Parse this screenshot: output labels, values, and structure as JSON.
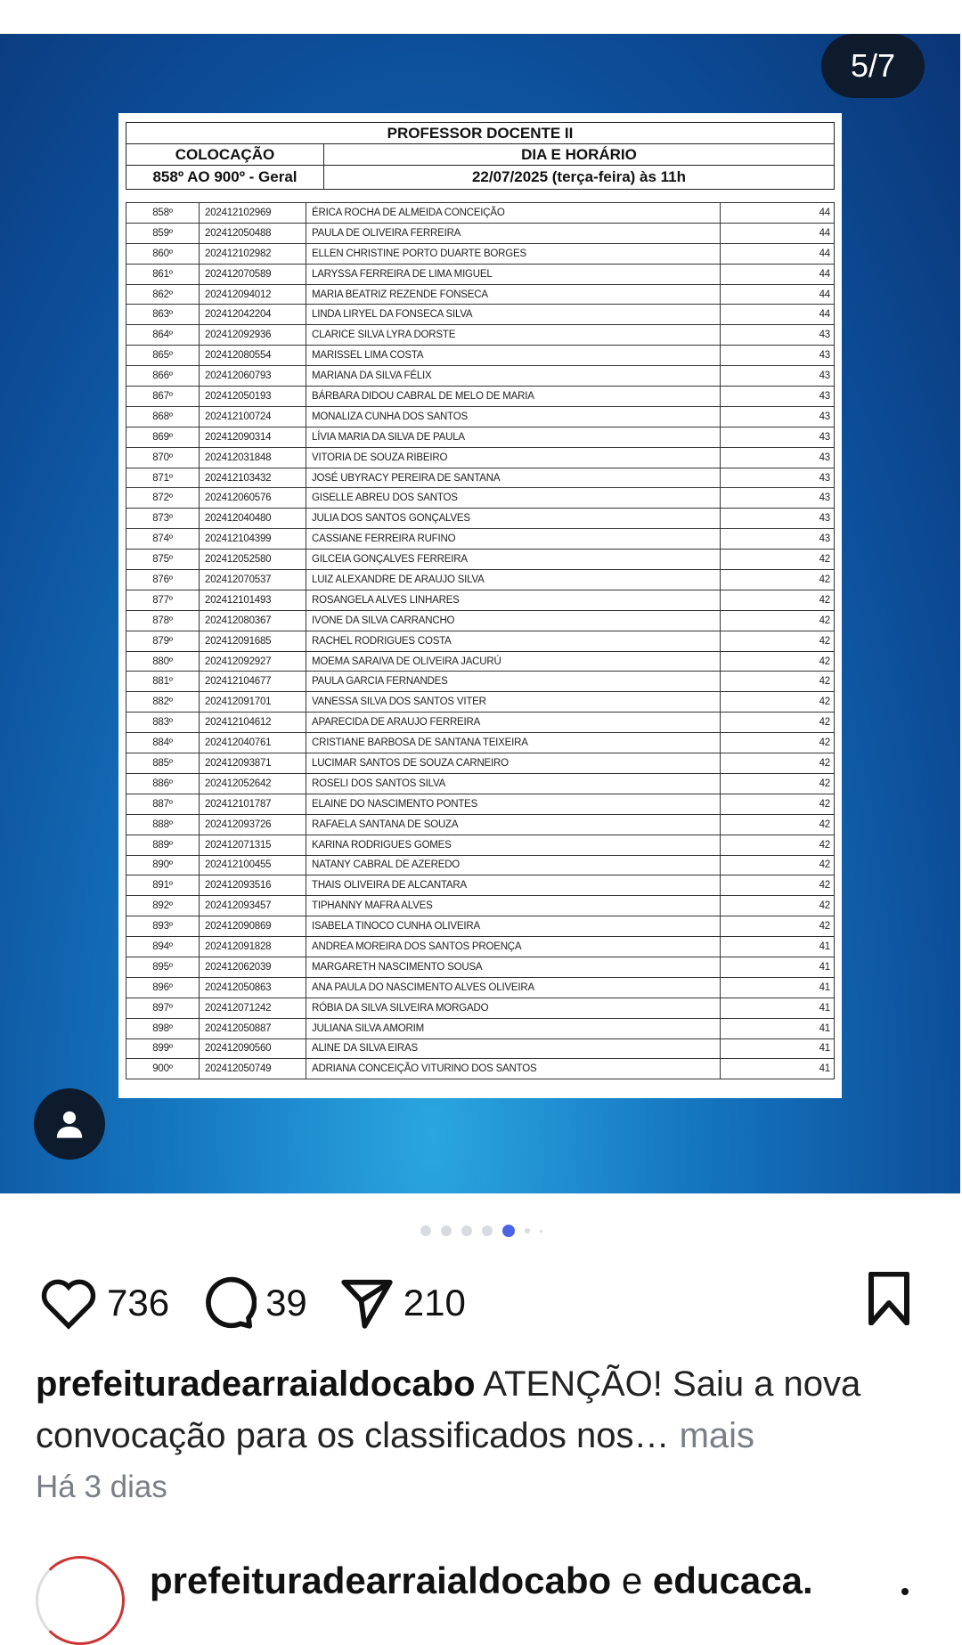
{
  "carousel": {
    "counter": "5/7",
    "total": 7,
    "current": 5
  },
  "document": {
    "title": "PROFESSOR DOCENTE II",
    "col_left": "COLOCAÇÃO",
    "col_right": "DIA E HORÁRIO",
    "range": "858º AO 900º - Geral",
    "date": "22/07/2025 (terça-feira) às 11h",
    "rows": [
      [
        "858º",
        "202412102969",
        "ÉRICA ROCHA DE ALMEIDA CONCEIÇÃO",
        "44"
      ],
      [
        "859º",
        "202412050488",
        "PAULA DE OLIVEIRA FERREIRA",
        "44"
      ],
      [
        "860º",
        "202412102982",
        "ELLEN CHRISTINE PORTO DUARTE BORGES",
        "44"
      ],
      [
        "861º",
        "202412070589",
        "LARYSSA FERREIRA DE LIMA MIGUEL",
        "44"
      ],
      [
        "862º",
        "202412094012",
        "MARIA BEATRIZ REZENDE FONSECA",
        "44"
      ],
      [
        "863º",
        "202412042204",
        "LINDA LIRYEL DA FONSECA SILVA",
        "44"
      ],
      [
        "864º",
        "202412092936",
        "CLARICE SILVA LYRA DORSTE",
        "43"
      ],
      [
        "865º",
        "202412080554",
        "MARISSEL LIMA COSTA",
        "43"
      ],
      [
        "866º",
        "202412060793",
        "MARIANA DA SILVA FÉLIX",
        "43"
      ],
      [
        "867º",
        "202412050193",
        "BÁRBARA DIDOU CABRAL DE MELO DE MARIA",
        "43"
      ],
      [
        "868º",
        "202412100724",
        "MONALIZA CUNHA DOS SANTOS",
        "43"
      ],
      [
        "869º",
        "202412090314",
        "LÍVIA MARIA DA SILVA DE PAULA",
        "43"
      ],
      [
        "870º",
        "202412031848",
        "VITORIA DE SOUZA RIBEIRO",
        "43"
      ],
      [
        "871º",
        "202412103432",
        "JOSÉ UBYRACY PEREIRA DE SANTANA",
        "43"
      ],
      [
        "872º",
        "202412060576",
        "GISELLE ABREU DOS SANTOS",
        "43"
      ],
      [
        "873º",
        "202412040480",
        "JULIA DOS SANTOS GONÇALVES",
        "43"
      ],
      [
        "874º",
        "202412104399",
        "CASSIANE FERREIRA RUFINO",
        "43"
      ],
      [
        "875º",
        "202412052580",
        "GILCEIA GONÇALVES FERREIRA",
        "42"
      ],
      [
        "876º",
        "202412070537",
        "LUIZ ALEXANDRE DE ARAUJO SILVA",
        "42"
      ],
      [
        "877º",
        "202412101493",
        "ROSANGELA ALVES LINHARES",
        "42"
      ],
      [
        "878º",
        "202412080367",
        "IVONE DA SILVA CARRANCHO",
        "42"
      ],
      [
        "879º",
        "202412091685",
        "RACHEL RODRIGUES COSTA",
        "42"
      ],
      [
        "880º",
        "202412092927",
        "MOEMA SARAIVA DE OLIVEIRA JACURÚ",
        "42"
      ],
      [
        "881º",
        "202412104677",
        "PAULA GARCIA FERNANDES",
        "42"
      ],
      [
        "882º",
        "202412091701",
        "VANESSA SILVA DOS SANTOS VITER",
        "42"
      ],
      [
        "883º",
        "202412104612",
        "APARECIDA DE ARAUJO FERREIRA",
        "42"
      ],
      [
        "884º",
        "202412040761",
        "CRISTIANE BARBOSA DE SANTANA TEIXEIRA",
        "42"
      ],
      [
        "885º",
        "202412093871",
        "LUCIMAR  SANTOS DE SOUZA CARNEIRO",
        "42"
      ],
      [
        "886º",
        "202412052642",
        "ROSELI DOS SANTOS SILVA",
        "42"
      ],
      [
        "887º",
        "202412101787",
        "ELAINE DO NASCIMENTO PONTES",
        "42"
      ],
      [
        "888º",
        "202412093726",
        "RAFAELA SANTANA DE SOUZA",
        "42"
      ],
      [
        "889º",
        "202412071315",
        "KARINA RODRIGUES GOMES",
        "42"
      ],
      [
        "890º",
        "202412100455",
        "NATANY CABRAL DE AZEREDO",
        "42"
      ],
      [
        "891º",
        "202412093516",
        "THAIS OLIVEIRA DE ALCANTARA",
        "42"
      ],
      [
        "892º",
        "202412093457",
        "TIPHANNY MAFRA ALVES",
        "42"
      ],
      [
        "893º",
        "202412090869",
        "ISABELA TINOCO CUNHA OLIVEIRA",
        "42"
      ],
      [
        "894º",
        "202412091828",
        "ANDREA MOREIRA DOS SANTOS PROENÇA",
        "41"
      ],
      [
        "895º",
        "202412062039",
        "MARGARETH NASCIMENTO SOUSA",
        "41"
      ],
      [
        "896º",
        "202412050863",
        "ANA PAULA DO NASCIMENTO ALVES OLIVEIRA",
        "41"
      ],
      [
        "897º",
        "202412071242",
        "RÓBIA DA SILVA SILVEIRA MORGADO",
        "41"
      ],
      [
        "898º",
        "202412050887",
        "JULIANA SILVA AMORIM",
        "41"
      ],
      [
        "899º",
        "202412090560",
        "ALINE DA SILVA EIRAS",
        "41"
      ],
      [
        "900º",
        "202412050749",
        "ADRIANA CONCEIÇÃO VITURINO DOS SANTOS",
        "41"
      ]
    ]
  },
  "actions": {
    "likes": "736",
    "comments": "39",
    "shares": "210"
  },
  "caption": {
    "username": "prefeituradearraialdocabo",
    "text": " ATENÇÃO! Saiu a nova convocação para os classificados nos…",
    "more": " mais"
  },
  "time": "Há 3 dias",
  "next_post": {
    "username": "prefeituradearraialdocabo",
    "connector": " e ",
    "collab": "educaca."
  },
  "colors": {
    "accent_dot": "#4b63e6",
    "pill": "#0e1b2c",
    "muted": "#7a7f87"
  }
}
